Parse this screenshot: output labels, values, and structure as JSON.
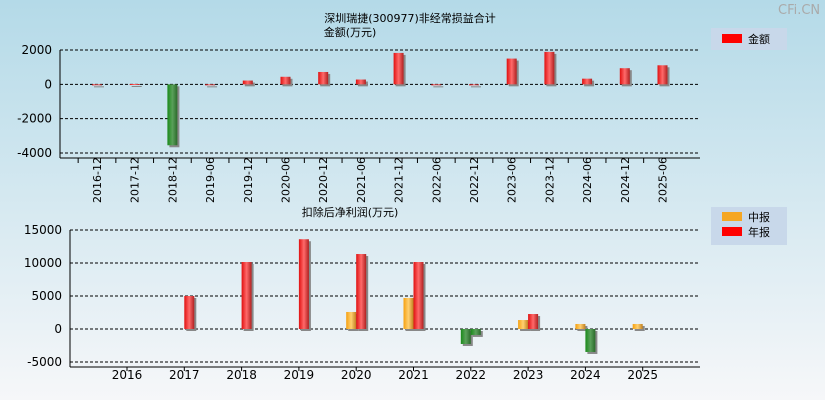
{
  "watermark": "CFi.CN",
  "colors": {
    "positive": "#ff2a2a",
    "negative": "#2a8a2a",
    "mid": "#f5a623"
  },
  "chart_data": [
    {
      "type": "bar",
      "title": "深圳瑞捷(300977)非经常损益合计",
      "subtitle": "金额(万元)",
      "legend": [
        "金额"
      ],
      "legend_position": "top-right",
      "categories": [
        "2016-12",
        "2017-12",
        "2018-12",
        "2019-06",
        "2019-12",
        "2020-06",
        "2020-12",
        "2021-06",
        "2021-12",
        "2022-06",
        "2022-12",
        "2023-06",
        "2023-12",
        "2024-06",
        "2024-12",
        "2025-06"
      ],
      "values": [
        0,
        20,
        -3550,
        0,
        220,
        440,
        720,
        280,
        1830,
        0,
        0,
        1500,
        1890,
        330,
        940,
        1110
      ],
      "ylim": [
        -4000,
        2000
      ],
      "yticks": [
        2000,
        0,
        -2000,
        -4000
      ],
      "grid": true
    },
    {
      "type": "bar",
      "title": "扣除后净利润(万元)",
      "legend": [
        "中报",
        "年报"
      ],
      "legend_position": "top-right",
      "categories": [
        "2016",
        "2017",
        "2018",
        "2019",
        "2020",
        "2021",
        "2022",
        "2023",
        "2024",
        "2025"
      ],
      "series": [
        {
          "name": "中报",
          "values": [
            null,
            null,
            null,
            null,
            2580,
            4700,
            -2270,
            1360,
            760,
            760
          ]
        },
        {
          "name": "年报",
          "values": [
            null,
            5000,
            10150,
            13600,
            11360,
            10150,
            -900,
            2270,
            -3480,
            null
          ]
        }
      ],
      "ylim": [
        -5000,
        15000
      ],
      "yticks": [
        15000,
        10000,
        5000,
        0,
        -5000
      ],
      "grid": true
    }
  ]
}
